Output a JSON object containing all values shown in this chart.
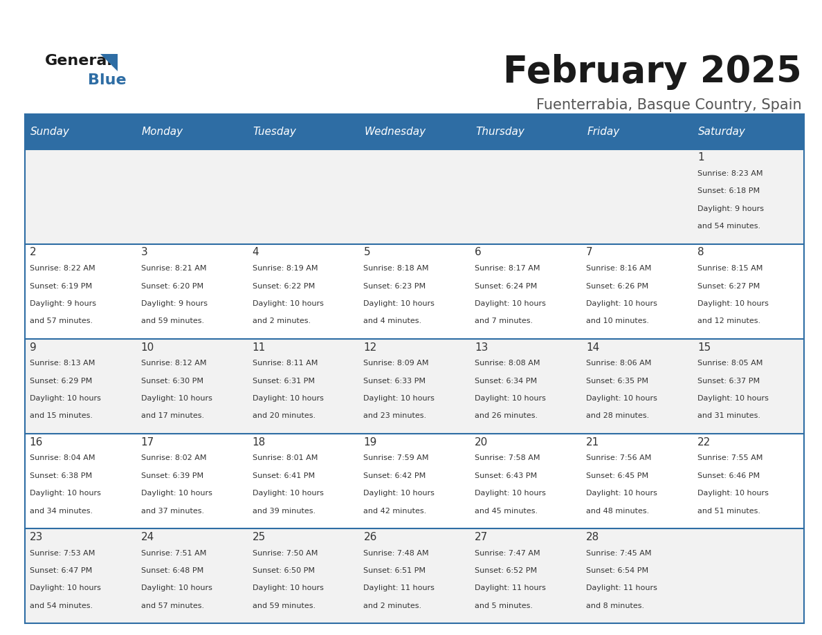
{
  "title": "February 2025",
  "subtitle": "Fuenterrabia, Basque Country, Spain",
  "header_bg": "#2E6DA4",
  "header_text": "#FFFFFF",
  "cell_bg_row0": "#F2F2F2",
  "cell_bg_row1": "#FFFFFF",
  "cell_bg_row2": "#F2F2F2",
  "cell_bg_row3": "#FFFFFF",
  "cell_bg_row4": "#F2F2F2",
  "day_headers": [
    "Sunday",
    "Monday",
    "Tuesday",
    "Wednesday",
    "Thursday",
    "Friday",
    "Saturday"
  ],
  "days": [
    {
      "day": 1,
      "col": 6,
      "row": 0,
      "sunrise": "8:23 AM",
      "sunset": "6:18 PM",
      "daylight": "9 hours and 54 minutes."
    },
    {
      "day": 2,
      "col": 0,
      "row": 1,
      "sunrise": "8:22 AM",
      "sunset": "6:19 PM",
      "daylight": "9 hours and 57 minutes."
    },
    {
      "day": 3,
      "col": 1,
      "row": 1,
      "sunrise": "8:21 AM",
      "sunset": "6:20 PM",
      "daylight": "9 hours and 59 minutes."
    },
    {
      "day": 4,
      "col": 2,
      "row": 1,
      "sunrise": "8:19 AM",
      "sunset": "6:22 PM",
      "daylight": "10 hours and 2 minutes."
    },
    {
      "day": 5,
      "col": 3,
      "row": 1,
      "sunrise": "8:18 AM",
      "sunset": "6:23 PM",
      "daylight": "10 hours and 4 minutes."
    },
    {
      "day": 6,
      "col": 4,
      "row": 1,
      "sunrise": "8:17 AM",
      "sunset": "6:24 PM",
      "daylight": "10 hours and 7 minutes."
    },
    {
      "day": 7,
      "col": 5,
      "row": 1,
      "sunrise": "8:16 AM",
      "sunset": "6:26 PM",
      "daylight": "10 hours and 10 minutes."
    },
    {
      "day": 8,
      "col": 6,
      "row": 1,
      "sunrise": "8:15 AM",
      "sunset": "6:27 PM",
      "daylight": "10 hours and 12 minutes."
    },
    {
      "day": 9,
      "col": 0,
      "row": 2,
      "sunrise": "8:13 AM",
      "sunset": "6:29 PM",
      "daylight": "10 hours and 15 minutes."
    },
    {
      "day": 10,
      "col": 1,
      "row": 2,
      "sunrise": "8:12 AM",
      "sunset": "6:30 PM",
      "daylight": "10 hours and 17 minutes."
    },
    {
      "day": 11,
      "col": 2,
      "row": 2,
      "sunrise": "8:11 AM",
      "sunset": "6:31 PM",
      "daylight": "10 hours and 20 minutes."
    },
    {
      "day": 12,
      "col": 3,
      "row": 2,
      "sunrise": "8:09 AM",
      "sunset": "6:33 PM",
      "daylight": "10 hours and 23 minutes."
    },
    {
      "day": 13,
      "col": 4,
      "row": 2,
      "sunrise": "8:08 AM",
      "sunset": "6:34 PM",
      "daylight": "10 hours and 26 minutes."
    },
    {
      "day": 14,
      "col": 5,
      "row": 2,
      "sunrise": "8:06 AM",
      "sunset": "6:35 PM",
      "daylight": "10 hours and 28 minutes."
    },
    {
      "day": 15,
      "col": 6,
      "row": 2,
      "sunrise": "8:05 AM",
      "sunset": "6:37 PM",
      "daylight": "10 hours and 31 minutes."
    },
    {
      "day": 16,
      "col": 0,
      "row": 3,
      "sunrise": "8:04 AM",
      "sunset": "6:38 PM",
      "daylight": "10 hours and 34 minutes."
    },
    {
      "day": 17,
      "col": 1,
      "row": 3,
      "sunrise": "8:02 AM",
      "sunset": "6:39 PM",
      "daylight": "10 hours and 37 minutes."
    },
    {
      "day": 18,
      "col": 2,
      "row": 3,
      "sunrise": "8:01 AM",
      "sunset": "6:41 PM",
      "daylight": "10 hours and 39 minutes."
    },
    {
      "day": 19,
      "col": 3,
      "row": 3,
      "sunrise": "7:59 AM",
      "sunset": "6:42 PM",
      "daylight": "10 hours and 42 minutes."
    },
    {
      "day": 20,
      "col": 4,
      "row": 3,
      "sunrise": "7:58 AM",
      "sunset": "6:43 PM",
      "daylight": "10 hours and 45 minutes."
    },
    {
      "day": 21,
      "col": 5,
      "row": 3,
      "sunrise": "7:56 AM",
      "sunset": "6:45 PM",
      "daylight": "10 hours and 48 minutes."
    },
    {
      "day": 22,
      "col": 6,
      "row": 3,
      "sunrise": "7:55 AM",
      "sunset": "6:46 PM",
      "daylight": "10 hours and 51 minutes."
    },
    {
      "day": 23,
      "col": 0,
      "row": 4,
      "sunrise": "7:53 AM",
      "sunset": "6:47 PM",
      "daylight": "10 hours and 54 minutes."
    },
    {
      "day": 24,
      "col": 1,
      "row": 4,
      "sunrise": "7:51 AM",
      "sunset": "6:48 PM",
      "daylight": "10 hours and 57 minutes."
    },
    {
      "day": 25,
      "col": 2,
      "row": 4,
      "sunrise": "7:50 AM",
      "sunset": "6:50 PM",
      "daylight": "10 hours and 59 minutes."
    },
    {
      "day": 26,
      "col": 3,
      "row": 4,
      "sunrise": "7:48 AM",
      "sunset": "6:51 PM",
      "daylight": "11 hours and 2 minutes."
    },
    {
      "day": 27,
      "col": 4,
      "row": 4,
      "sunrise": "7:47 AM",
      "sunset": "6:52 PM",
      "daylight": "11 hours and 5 minutes."
    },
    {
      "day": 28,
      "col": 5,
      "row": 4,
      "sunrise": "7:45 AM",
      "sunset": "6:54 PM",
      "daylight": "11 hours and 8 minutes."
    }
  ],
  "logo_general_color": "#1a1a1a",
  "logo_blue_color": "#2E6DA4",
  "logo_triangle_color": "#2E6DA4",
  "line_color": "#2E6DA4",
  "text_color": "#333333"
}
